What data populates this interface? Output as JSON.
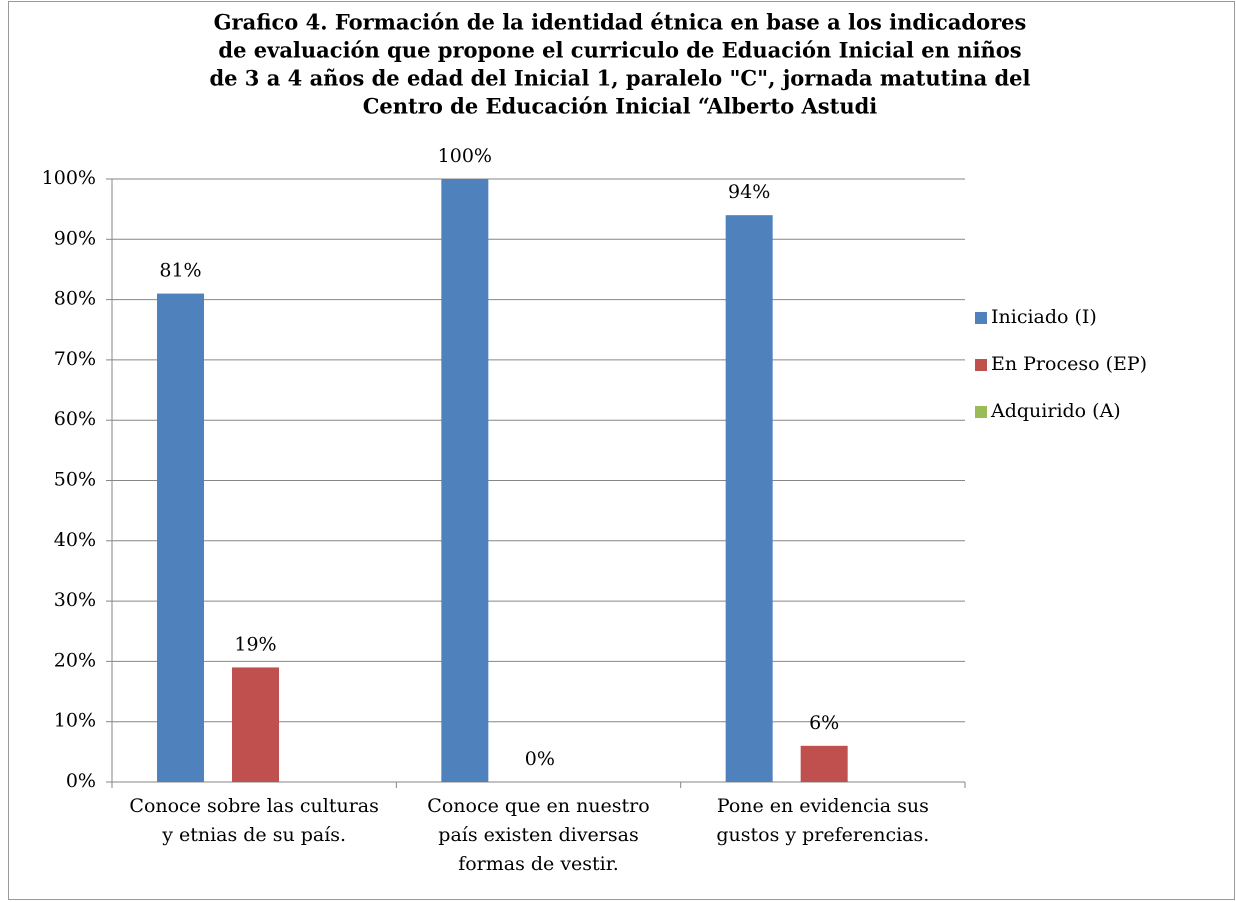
{
  "chart_data": {
    "type": "bar",
    "title": [
      "Grafico 4. Formación de la identidad étnica en base a los indicadores",
      "de evaluación que propone el curriculo de Eduación  Inicial en niños",
      "de 3 a 4 años de edad del  Inicial 1, paralelo \"C\", jornada matutina del",
      "Centro de Educación Inicial “Alberto Astudi"
    ],
    "categories": [
      "Conoce sobre las culturas y etnias de su país.",
      "Conoce que en nuestro país existen diversas formas de vestir.",
      "Pone en evidencia sus gustos y preferencias."
    ],
    "series": [
      {
        "name": "Iniciado (I)",
        "color": "#4f81bd",
        "values": [
          81,
          100,
          94
        ],
        "value_labels": [
          "81%",
          "100%",
          "94%"
        ]
      },
      {
        "name": "En Proceso (EP)",
        "color": "#c0504d",
        "values": [
          19,
          0,
          6
        ],
        "value_labels": [
          "19%",
          "0%",
          "6%"
        ]
      },
      {
        "name": "Adquirido (A)",
        "color": "#9bbb59",
        "values": [
          0,
          0,
          0
        ]
      }
    ],
    "ylim": [
      0,
      100
    ],
    "yticks": [
      {
        "value": 0,
        "label": "0%"
      },
      {
        "value": 10,
        "label": "10%"
      },
      {
        "value": 20,
        "label": "20%"
      },
      {
        "value": 30,
        "label": "30%"
      },
      {
        "value": 40,
        "label": "40%"
      },
      {
        "value": 50,
        "label": "50%"
      },
      {
        "value": 60,
        "label": "60%"
      },
      {
        "value": 70,
        "label": "70%"
      },
      {
        "value": 80,
        "label": "80%"
      },
      {
        "value": 90,
        "label": "90%"
      },
      {
        "value": 100,
        "label": "100%"
      }
    ],
    "grid": true,
    "legend": "right"
  }
}
